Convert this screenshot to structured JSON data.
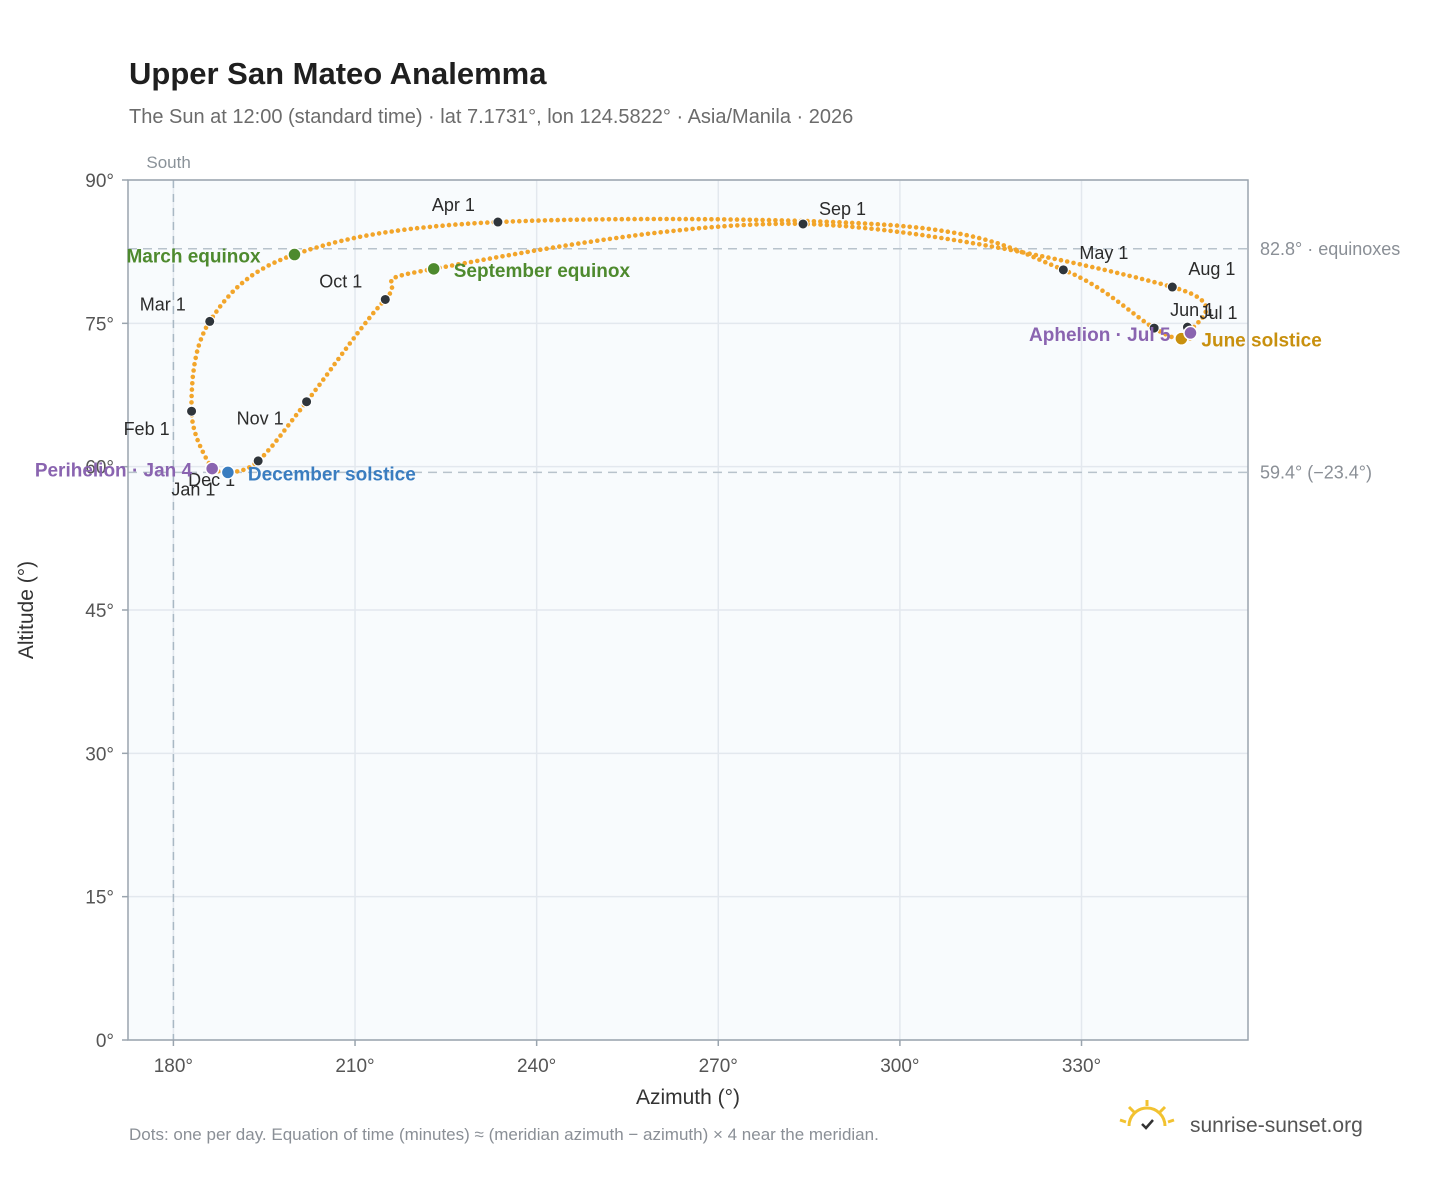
{
  "chart_data": {
    "type": "scatter",
    "title": "Upper San Mateo Analemma",
    "subtitle": "The Sun at 12:00 (standard time) · lat 7.1731°, lon 124.5822° · Asia/Manila · 2026",
    "xlabel": "Azimuth (°)",
    "ylabel": "Altitude (°)",
    "xlim": [
      172.5,
      357.5
    ],
    "ylim": [
      0,
      90
    ],
    "x_ticks": [
      180,
      210,
      240,
      270,
      300,
      330
    ],
    "x_tick_labels": [
      "180°",
      "210°",
      "240°",
      "270°",
      "300°",
      "330°"
    ],
    "y_ticks": [
      0,
      15,
      30,
      45,
      60,
      75,
      90
    ],
    "y_tick_labels": [
      "0°",
      "15°",
      "30°",
      "45°",
      "60°",
      "75°",
      "90°"
    ],
    "grid": true,
    "south_line": {
      "azimuth": 180,
      "label": "South"
    },
    "reference_lines": [
      {
        "altitude": 82.8,
        "label": "82.8° · equinoxes"
      },
      {
        "altitude": 59.4,
        "label": "59.4° (−23.4°)"
      }
    ],
    "path_points": [
      {
        "az": 186.4,
        "alt": 59.8
      },
      {
        "az": 183.0,
        "alt": 65.8
      },
      {
        "az": 186.0,
        "alt": 75.2
      },
      {
        "az": 200.0,
        "alt": 82.2
      },
      {
        "az": 233.6,
        "alt": 85.6
      },
      {
        "az": 300.0,
        "alt": 85.2
      },
      {
        "az": 327.0,
        "alt": 80.6
      },
      {
        "az": 342.0,
        "alt": 74.5
      },
      {
        "az": 346.5,
        "alt": 73.4
      },
      {
        "az": 348.0,
        "alt": 74.0
      },
      {
        "az": 345.0,
        "alt": 78.8
      },
      {
        "az": 284.0,
        "alt": 85.4
      },
      {
        "az": 223.0,
        "alt": 80.7
      },
      {
        "az": 215.0,
        "alt": 77.5
      },
      {
        "az": 202.0,
        "alt": 66.8
      },
      {
        "az": 194.0,
        "alt": 60.6
      },
      {
        "az": 189.0,
        "alt": 59.4
      },
      {
        "az": 186.4,
        "alt": 59.8
      }
    ],
    "month_markers": [
      {
        "label": "Jan 1",
        "az": 186.6,
        "alt": 59.9
      },
      {
        "label": "Feb 1",
        "az": 183.0,
        "alt": 65.8
      },
      {
        "label": "Mar 1",
        "az": 186.0,
        "alt": 75.2
      },
      {
        "label": "Apr 1",
        "az": 233.6,
        "alt": 85.6
      },
      {
        "label": "May 1",
        "az": 327.0,
        "alt": 80.6
      },
      {
        "label": "Jun 1",
        "az": 342.0,
        "alt": 74.5
      },
      {
        "label": "Jul 1",
        "az": 347.5,
        "alt": 74.6
      },
      {
        "label": "Aug 1",
        "az": 345.0,
        "alt": 78.8
      },
      {
        "label": "Sep 1",
        "az": 284.0,
        "alt": 85.4
      },
      {
        "label": "Oct 1",
        "az": 215.0,
        "alt": 77.5
      },
      {
        "label": "Nov 1",
        "az": 202.0,
        "alt": 66.8
      },
      {
        "label": "Dec 1",
        "az": 194.0,
        "alt": 60.6
      }
    ],
    "events": [
      {
        "label": "March equinox",
        "az": 200.0,
        "alt": 82.2,
        "color": "#4e8a2e"
      },
      {
        "label": "September equinox",
        "az": 223.0,
        "alt": 80.7,
        "color": "#4e8a2e"
      },
      {
        "label": "June solstice",
        "az": 346.5,
        "alt": 73.4,
        "color": "#c8900e"
      },
      {
        "label": "December solstice",
        "az": 189.0,
        "alt": 59.4,
        "color": "#3a7dc0"
      },
      {
        "label": "Perihelion · Jan 4",
        "az": 186.4,
        "alt": 59.8,
        "color": "#8a64b0"
      },
      {
        "label": "Aphelion · Jul 5",
        "az": 348.0,
        "alt": 74.0,
        "color": "#8a64b0"
      }
    ],
    "series_color": "#f2a52a"
  },
  "footnote": "Dots: one per day. Equation of time (minutes) ≈ (meridian azimuth − azimuth) × 4 near the meridian.",
  "brand": {
    "name": "sunrise-sunset.org",
    "icon": "sun-logo-icon"
  }
}
